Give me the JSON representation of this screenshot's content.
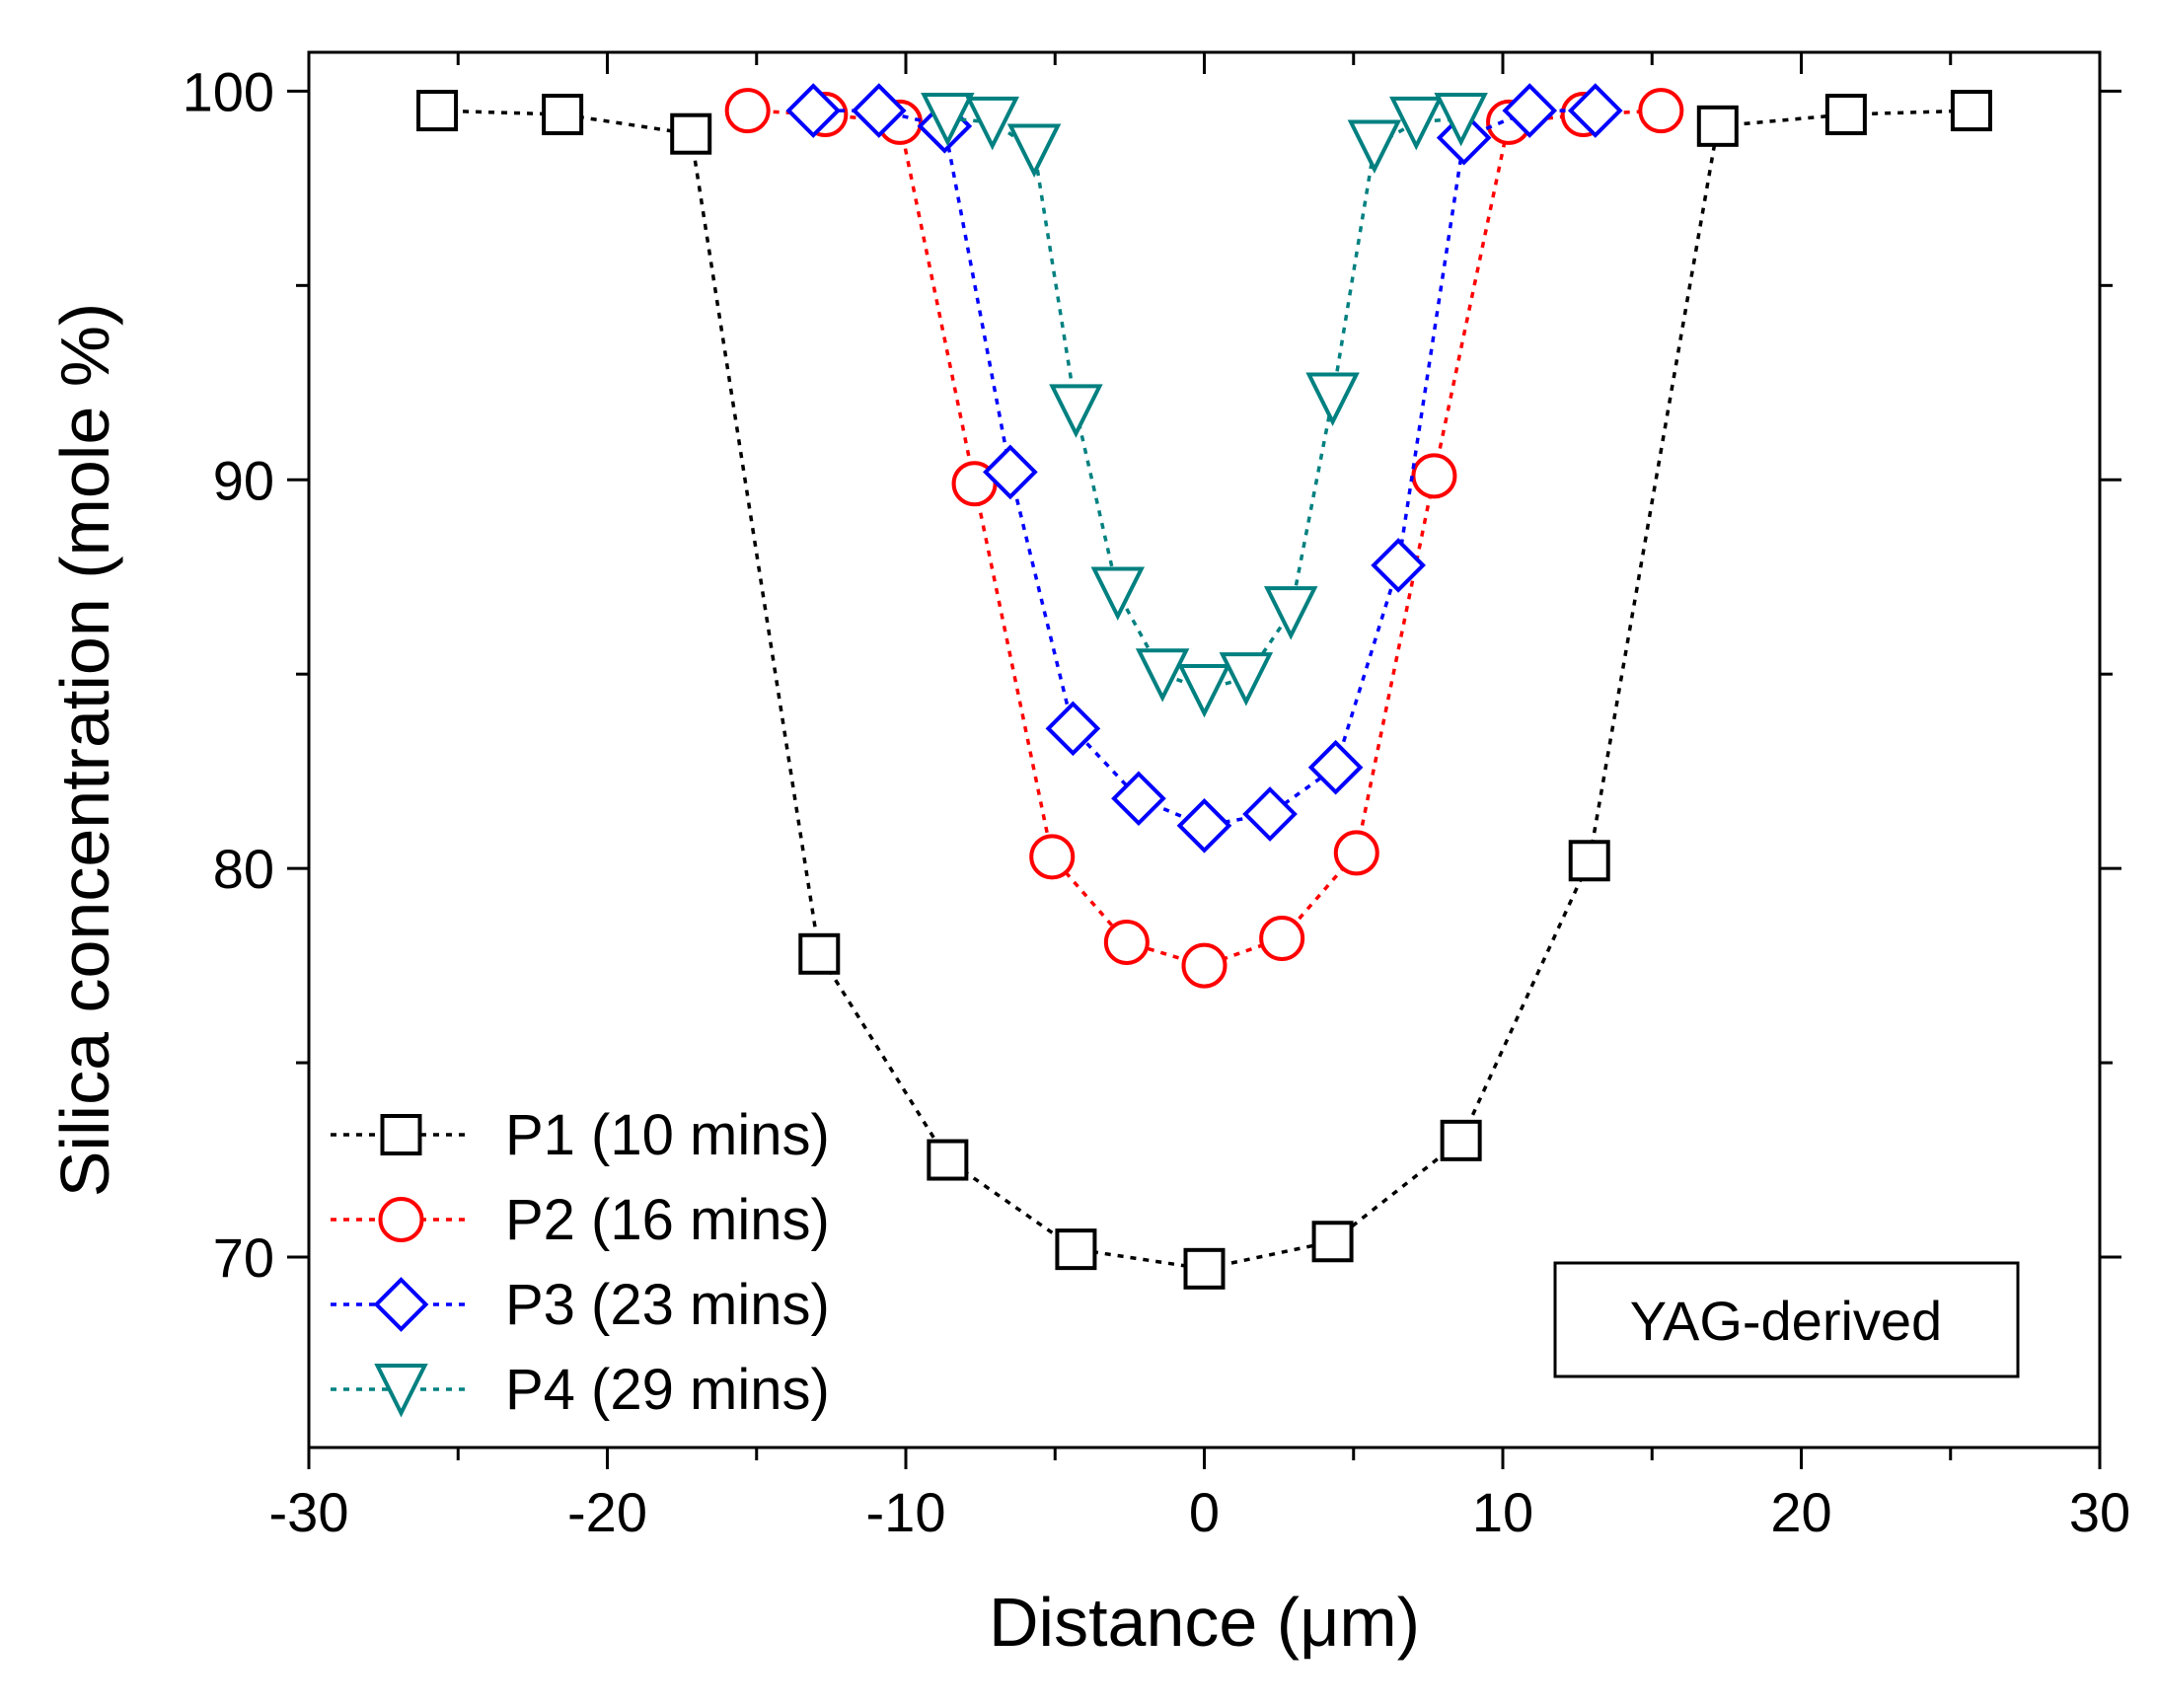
{
  "chart_data": {
    "type": "line",
    "title": "",
    "xlabel": "Distance (μm)",
    "ylabel": "Silica concentration (mole %)",
    "xlim": [
      -30,
      30
    ],
    "ylim": [
      65.1,
      101
    ],
    "xticks": [
      -30,
      -20,
      -10,
      0,
      10,
      20,
      30
    ],
    "xtick_labels": [
      "-30",
      "-20",
      "-10",
      "0",
      "10",
      "20",
      "30"
    ],
    "yticks": [
      70,
      80,
      90,
      100
    ],
    "ytick_labels": [
      "70",
      "80",
      "90",
      "100"
    ],
    "grid": false,
    "legend_position": "bottom-left",
    "annotation": "YAG-derived",
    "series": [
      {
        "name": "P1 (10 mins)",
        "color": "#000000",
        "marker": "square",
        "x": [
          -25.7,
          -21.5,
          -17.2,
          -12.9,
          -8.6,
          -4.3,
          0,
          4.3,
          8.6,
          12.9,
          17.2,
          21.5,
          25.7
        ],
        "y": [
          99.5,
          99.4,
          98.9,
          77.8,
          72.5,
          70.2,
          69.7,
          70.4,
          73.0,
          80.2,
          99.1,
          99.4,
          99.5
        ]
      },
      {
        "name": "P2 (16 mins)",
        "color": "#ff0000",
        "marker": "circle",
        "x": [
          -15.3,
          -12.7,
          -10.2,
          -7.7,
          -5.1,
          -2.6,
          0,
          2.6,
          5.1,
          7.7,
          10.2,
          12.7,
          15.3
        ],
        "y": [
          99.5,
          99.4,
          99.2,
          89.9,
          80.3,
          78.1,
          77.5,
          78.2,
          80.4,
          90.1,
          99.2,
          99.4,
          99.5
        ]
      },
      {
        "name": "P3 (23 mins)",
        "color": "#0000ff",
        "marker": "diamond",
        "x": [
          -13.1,
          -10.9,
          -8.7,
          -6.5,
          -4.4,
          -2.2,
          0,
          2.2,
          4.4,
          6.5,
          8.7,
          10.9,
          13.1
        ],
        "y": [
          99.5,
          99.5,
          99.1,
          90.2,
          83.6,
          81.8,
          81.1,
          81.4,
          82.6,
          87.8,
          98.8,
          99.5,
          99.5
        ]
      },
      {
        "name": "P4 (29 mins)",
        "color": "#008080",
        "marker": "triangle-down",
        "x": [
          -8.6,
          -7.1,
          -5.7,
          -4.3,
          -2.9,
          -1.4,
          0,
          1.4,
          2.9,
          4.3,
          5.7,
          7.1,
          8.6
        ],
        "y": [
          99.3,
          99.2,
          98.5,
          91.8,
          87.1,
          85.0,
          84.6,
          84.9,
          86.6,
          92.1,
          98.6,
          99.2,
          99.3
        ]
      }
    ]
  }
}
